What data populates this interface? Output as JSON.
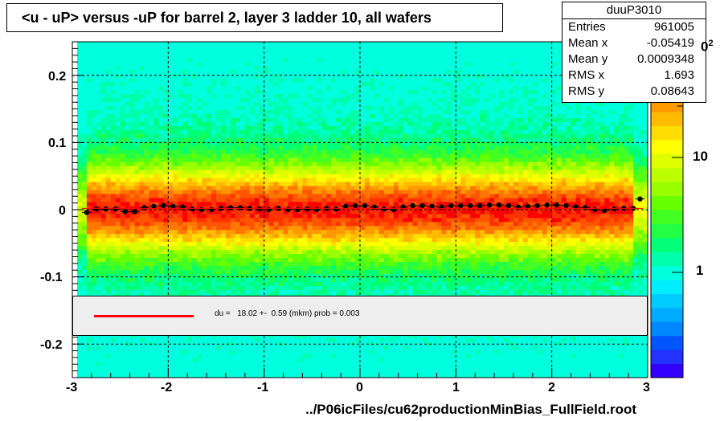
{
  "title": "<u - uP>       versus  -uP for barrel 2, layer 3 ladder 10, all wafers",
  "stats": {
    "name": "duuP3010",
    "rows": [
      {
        "key": "Entries",
        "value": "961005"
      },
      {
        "key": "Mean x",
        "value": "-0.05419"
      },
      {
        "key": "Mean y",
        "value": "0.0009348"
      },
      {
        "key": "RMS x",
        "value": "1.693"
      },
      {
        "key": "RMS y",
        "value": "0.08643"
      }
    ]
  },
  "fit_legend": "du =   18.02 +-  0.59 (mkm) prob = 0.003",
  "footer": "../P06icFiles/cu62productionMinBias_FullField.root",
  "palette": {
    "labels": [
      "10",
      "1"
    ],
    "exponent": "2",
    "colors": [
      "#3300ff",
      "#2233ff",
      "#0055ff",
      "#0088ff",
      "#00aaff",
      "#00ccff",
      "#00eeff",
      "#00ffdd",
      "#00ffaa",
      "#00ff77",
      "#22ff44",
      "#44ff22",
      "#66ff00",
      "#99ff00",
      "#bbff00",
      "#ddff00",
      "#ffff00",
      "#ffdd00",
      "#ffbb00",
      "#ff9900",
      "#ff7700",
      "#ff5500",
      "#ff3300",
      "#ff0000"
    ]
  },
  "chart_data": {
    "type": "heatmap",
    "title": "<u - uP>       versus  -uP for barrel 2, layer 3 ladder 10, all wafers",
    "xlim": [
      -3,
      3
    ],
    "ylim": [
      -0.25,
      0.25
    ],
    "x_ticks": [
      "-3",
      "-2",
      "-1",
      "0",
      "1",
      "2",
      "3"
    ],
    "y_ticks": [
      "-0.2",
      "-0.1",
      "0",
      "0.1",
      "0.2"
    ],
    "grid": true,
    "log_z": true,
    "profile": {
      "x": [
        -2.85,
        -2.75,
        -2.65,
        -2.55,
        -2.45,
        -2.35,
        -2.25,
        -2.15,
        -2.05,
        -1.95,
        -1.85,
        -1.75,
        -1.65,
        -1.55,
        -1.45,
        -1.35,
        -1.25,
        -1.15,
        -1.05,
        -0.95,
        -0.85,
        -0.75,
        -0.65,
        -0.55,
        -0.45,
        -0.35,
        -0.25,
        -0.15,
        -0.05,
        0.05,
        0.15,
        0.25,
        0.35,
        0.45,
        0.55,
        0.65,
        0.75,
        0.85,
        0.95,
        1.05,
        1.15,
        1.25,
        1.35,
        1.45,
        1.55,
        1.65,
        1.75,
        1.85,
        1.95,
        2.05,
        2.15,
        2.25,
        2.35,
        2.45,
        2.55,
        2.65,
        2.75,
        2.85,
        2.92
      ],
      "y": [
        -0.004,
        0.001,
        0.001,
        0.001,
        -0.003,
        -0.003,
        0.003,
        0.005,
        0.006,
        0.005,
        0.004,
        0.001,
        0.0,
        0.0,
        0.002,
        0.003,
        0.003,
        0.002,
        0.001,
        0.0,
        0.002,
        0.0,
        0.0,
        0.001,
        0.0,
        0.002,
        0.001,
        0.005,
        0.006,
        0.006,
        0.004,
        0.001,
        0.0,
        0.004,
        0.006,
        0.006,
        0.005,
        0.004,
        0.006,
        0.006,
        0.006,
        0.006,
        0.007,
        0.007,
        0.006,
        0.004,
        0.005,
        0.006,
        0.007,
        0.007,
        0.006,
        0.004,
        0.003,
        0.0,
        -0.001,
        0.001,
        0.002,
        0.002,
        0.016
      ]
    },
    "fit": {
      "label": "du =   18.02 +-  0.59 (mkm) prob = 0.003",
      "y": 0.002
    }
  }
}
